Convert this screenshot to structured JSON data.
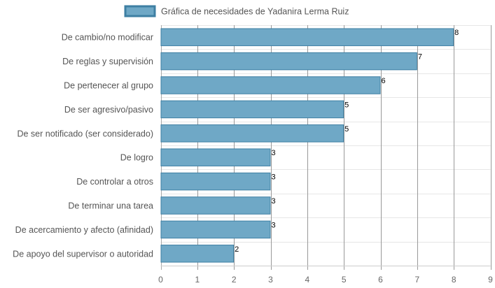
{
  "chart_data": {
    "type": "bar",
    "orientation": "horizontal",
    "categories": [
      "De cambio/no modificar",
      "De reglas y supervisión",
      "De pertenecer al grupo",
      "De ser agresivo/pasivo",
      "De ser notificado (ser considerado)",
      "De logro",
      "De controlar a otros",
      "De terminar una tarea",
      "De acercamiento y afecto (afinidad)",
      "De apoyo del supervisor o autoridad"
    ],
    "series": [
      {
        "name": "Gráfica de necesidades de Yadanira Lerma Ruiz",
        "values": [
          8,
          7,
          6,
          5,
          5,
          3,
          3,
          3,
          3,
          2
        ],
        "color": "#6fa8c6",
        "border_color": "#3e7fa3"
      }
    ],
    "xlim": [
      0,
      9
    ],
    "x_ticks": [
      0,
      1,
      2,
      3,
      4,
      5,
      6,
      7,
      8,
      9
    ],
    "grid": true,
    "legend_position": "top",
    "data_labels": true
  }
}
